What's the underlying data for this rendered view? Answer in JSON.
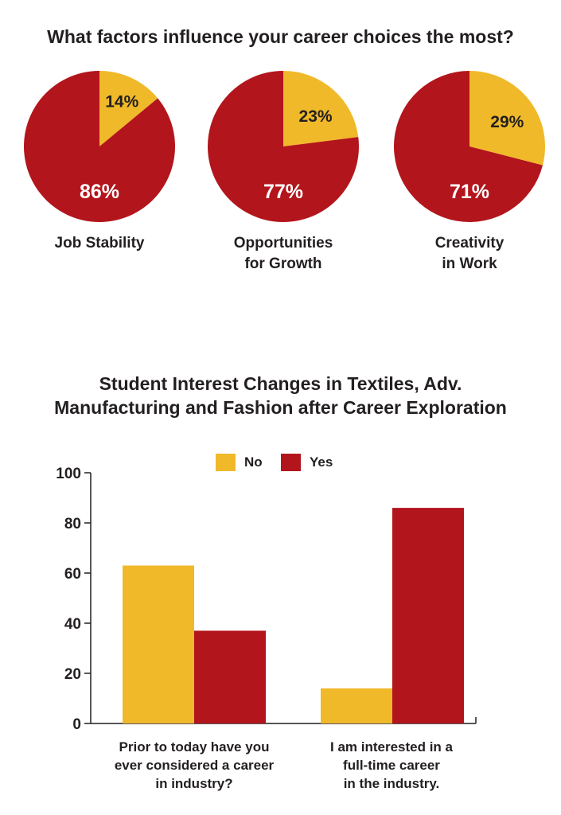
{
  "chart_data": [
    {
      "type": "pie",
      "title": "What factors influence your career choices the most?",
      "charts": [
        {
          "label_line1": "Job Stability",
          "label_line2": "",
          "slices": [
            {
              "value": 14,
              "label": "14%",
              "color": "#f0b929"
            },
            {
              "value": 86,
              "label": "86%",
              "color": "#b3151c"
            }
          ]
        },
        {
          "label_line1": "Opportunities",
          "label_line2": "for Growth",
          "slices": [
            {
              "value": 23,
              "label": "23%",
              "color": "#f0b929"
            },
            {
              "value": 77,
              "label": "77%",
              "color": "#b3151c"
            }
          ]
        },
        {
          "label_line1": "Creativity",
          "label_line2": "in Work",
          "slices": [
            {
              "value": 29,
              "label": "29%",
              "color": "#f0b929"
            },
            {
              "value": 71,
              "label": "71%",
              "color": "#b3151c"
            }
          ]
        }
      ]
    },
    {
      "type": "bar",
      "title_line1": "Student Interest Changes in Textiles, Adv.",
      "title_line2": "Manufacturing and Fashion after Career Exploration",
      "categories": [
        [
          "Prior to today have you",
          "ever considered a career",
          "in industry?"
        ],
        [
          "I am interested in a",
          "full-time career",
          "in the industry."
        ]
      ],
      "series": [
        {
          "name": "No",
          "values": [
            63,
            14
          ],
          "color": "#f0b929"
        },
        {
          "name": "Yes",
          "values": [
            37,
            86
          ],
          "color": "#b3151c"
        }
      ],
      "ylim": [
        0,
        100
      ],
      "yticks": [
        "0",
        "20",
        "40",
        "60",
        "80",
        "100"
      ],
      "legend": "top-center"
    }
  ]
}
